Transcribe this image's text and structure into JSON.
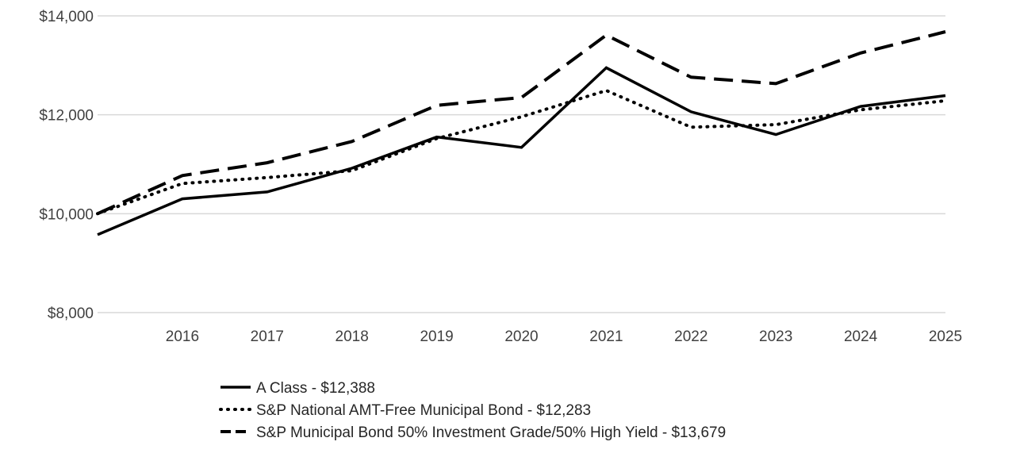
{
  "chart_data": {
    "type": "line",
    "title": "",
    "xlabel": "",
    "ylabel": "",
    "x": [
      "2015",
      "2016",
      "2017",
      "2018",
      "2019",
      "2020",
      "2021",
      "2022",
      "2023",
      "2024",
      "2025"
    ],
    "x_tick_labels": [
      "2016",
      "2017",
      "2018",
      "2019",
      "2020",
      "2021",
      "2022",
      "2023",
      "2024",
      "2025"
    ],
    "y_tick_values": [
      8000,
      10000,
      12000,
      14000
    ],
    "y_tick_labels": [
      "$8,000",
      "$10,000",
      "$12,000",
      "$14,000"
    ],
    "ylim": [
      8000,
      14000
    ],
    "grid": "horizontal",
    "legend_position": "bottom",
    "series": [
      {
        "name": "A Class - $12,388",
        "style": "solid",
        "color": "#000000",
        "values": [
          9575,
          10300,
          10440,
          10920,
          11550,
          11340,
          12950,
          12060,
          11600,
          12170,
          12388
        ]
      },
      {
        "name": "S&P National AMT-Free Municipal Bond - $12,283",
        "style": "dotted",
        "color": "#000000",
        "values": [
          10000,
          10610,
          10730,
          10870,
          11520,
          11960,
          12490,
          11750,
          11800,
          12100,
          12283
        ]
      },
      {
        "name": "S&P Municipal Bond 50% Investment Grade/50% High Yield - $13,679",
        "style": "dashed",
        "color": "#000000",
        "values": [
          10000,
          10770,
          11030,
          11460,
          12190,
          12350,
          13610,
          12760,
          12630,
          13250,
          13679
        ]
      }
    ]
  }
}
